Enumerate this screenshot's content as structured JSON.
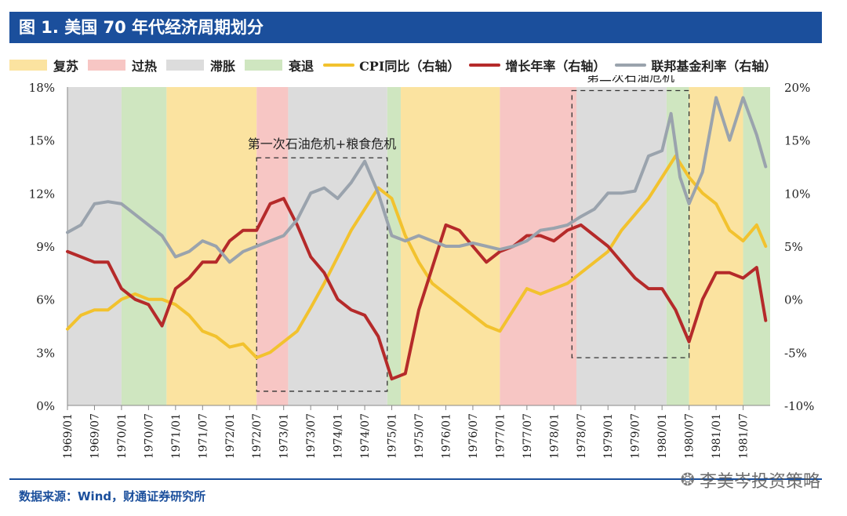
{
  "title": "图 1. 美国 70 年代经济周期划分",
  "legend": {
    "items": [
      {
        "label": "复苏",
        "kind": "box",
        "color": "#fbe3a0"
      },
      {
        "label": "过热",
        "kind": "box",
        "color": "#f7c6c4"
      },
      {
        "label": "滞胀",
        "kind": "box",
        "color": "#dcdcdc"
      },
      {
        "label": "衰退",
        "kind": "box",
        "color": "#cfe6c0"
      },
      {
        "label": "CPI同比（右轴）",
        "kind": "line",
        "color": "#f2c22e"
      },
      {
        "label": "增长年率（右轴）",
        "kind": "line",
        "color": "#b52a2a"
      },
      {
        "label": "联邦基金利率（右轴）",
        "kind": "line",
        "color": "#9aa3ad"
      }
    ]
  },
  "source": "数据来源：Wind，财通证券研究所",
  "watermark": "李美岑投资策略",
  "chart_data": {
    "type": "line",
    "x_start": "1969/01",
    "x_end": "1981/12",
    "x_ticks": [
      "1969/01",
      "1969/07",
      "1970/01",
      "1970/07",
      "1971/01",
      "1971/07",
      "1972/01",
      "1972/07",
      "1973/01",
      "1973/07",
      "1974/01",
      "1974/07",
      "1975/01",
      "1975/07",
      "1976/01",
      "1976/07",
      "1977/01",
      "1977/07",
      "1978/01",
      "1978/07",
      "1979/01",
      "1979/07",
      "1980/01",
      "1980/07",
      "1981/01",
      "1981/07"
    ],
    "left_axis": {
      "ylim": [
        0,
        18
      ],
      "ticks": [
        0,
        3,
        6,
        9,
        12,
        15,
        18
      ],
      "format": "percent"
    },
    "right_axis": {
      "ylim": [
        -10,
        20
      ],
      "ticks": [
        -10,
        -5,
        0,
        5,
        10,
        15,
        20
      ],
      "format": "percent"
    },
    "phases": [
      {
        "start": "1969/01",
        "end": "1970/01",
        "type": "滞胀",
        "color": "#dcdcdc"
      },
      {
        "start": "1970/01",
        "end": "1970/11",
        "type": "衰退",
        "color": "#cfe6c0"
      },
      {
        "start": "1970/11",
        "end": "1972/07",
        "type": "复苏",
        "color": "#fbe3a0"
      },
      {
        "start": "1972/07",
        "end": "1973/02",
        "type": "过热",
        "color": "#f7c6c4"
      },
      {
        "start": "1973/02",
        "end": "1974/12",
        "type": "滞胀",
        "color": "#dcdcdc"
      },
      {
        "start": "1974/12",
        "end": "1975/03",
        "type": "衰退",
        "color": "#cfe6c0"
      },
      {
        "start": "1975/03",
        "end": "1977/01",
        "type": "复苏",
        "color": "#fbe3a0"
      },
      {
        "start": "1977/01",
        "end": "1978/06",
        "type": "过热",
        "color": "#f7c6c4"
      },
      {
        "start": "1978/06",
        "end": "1980/02",
        "type": "滞胀",
        "color": "#dcdcdc"
      },
      {
        "start": "1980/02",
        "end": "1980/07",
        "type": "衰退",
        "color": "#cfe6c0"
      },
      {
        "start": "1980/07",
        "end": "1981/07",
        "type": "复苏",
        "color": "#fbe3a0"
      },
      {
        "start": "1981/07",
        "end": "1981/12",
        "type": "衰退",
        "color": "#cfe6c0"
      }
    ],
    "annotations": [
      {
        "label": "第一次石油危机+粮食危机",
        "start": "1972/07",
        "end": "1974/12",
        "y_top": 14,
        "y_bottom": 0.8
      },
      {
        "label": "第二次石油危机",
        "start": "1978/05",
        "end": "1980/07",
        "y_top": 17.8,
        "y_bottom": 2.7
      }
    ],
    "series": [
      {
        "name": "CPI同比（右轴）",
        "axis": "right",
        "color": "#f2c22e",
        "points": [
          [
            "1969/01",
            -2.8
          ],
          [
            "1969/04",
            -1.5
          ],
          [
            "1969/07",
            -1.0
          ],
          [
            "1969/10",
            -1.0
          ],
          [
            "1970/01",
            0
          ],
          [
            "1970/04",
            0.5
          ],
          [
            "1970/07",
            0
          ],
          [
            "1970/10",
            0
          ],
          [
            "1971/01",
            -0.5
          ],
          [
            "1971/04",
            -1.5
          ],
          [
            "1971/07",
            -3.0
          ],
          [
            "1971/10",
            -3.5
          ],
          [
            "1972/01",
            -4.5
          ],
          [
            "1972/04",
            -4.2
          ],
          [
            "1972/07",
            -5.5
          ],
          [
            "1972/10",
            -5.0
          ],
          [
            "1973/01",
            -4.0
          ],
          [
            "1973/04",
            -3.0
          ],
          [
            "1973/07",
            -0.8
          ],
          [
            "1973/10",
            1.5
          ],
          [
            "1974/01",
            4.0
          ],
          [
            "1974/04",
            6.5
          ],
          [
            "1974/07",
            8.5
          ],
          [
            "1974/10",
            10.5
          ],
          [
            "1975/01",
            9.5
          ],
          [
            "1975/04",
            6.0
          ],
          [
            "1975/07",
            3.5
          ],
          [
            "1975/10",
            1.5
          ],
          [
            "1976/01",
            0.5
          ],
          [
            "1976/04",
            -0.5
          ],
          [
            "1976/07",
            -1.5
          ],
          [
            "1976/10",
            -2.5
          ],
          [
            "1977/01",
            -3.0
          ],
          [
            "1977/04",
            -1.0
          ],
          [
            "1977/07",
            1.0
          ],
          [
            "1977/10",
            0.5
          ],
          [
            "1978/01",
            1.0
          ],
          [
            "1978/04",
            1.5
          ],
          [
            "1978/07",
            2.5
          ],
          [
            "1978/10",
            3.5
          ],
          [
            "1979/01",
            4.5
          ],
          [
            "1979/04",
            6.5
          ],
          [
            "1979/07",
            8.0
          ],
          [
            "1979/10",
            9.5
          ],
          [
            "1980/01",
            11.5
          ],
          [
            "1980/04",
            13.5
          ],
          [
            "1980/07",
            11.5
          ],
          [
            "1980/10",
            10.0
          ],
          [
            "1981/01",
            9.0
          ],
          [
            "1981/04",
            6.5
          ],
          [
            "1981/07",
            5.5
          ],
          [
            "1981/10",
            7.0
          ],
          [
            "1981/12",
            5.0
          ]
        ]
      },
      {
        "name": "增长年率（右轴）",
        "axis": "right",
        "color": "#b52a2a",
        "points": [
          [
            "1969/01",
            4.5
          ],
          [
            "1969/04",
            4.0
          ],
          [
            "1969/07",
            3.5
          ],
          [
            "1969/10",
            3.5
          ],
          [
            "1970/01",
            1.0
          ],
          [
            "1970/04",
            0
          ],
          [
            "1970/07",
            -0.5
          ],
          [
            "1970/10",
            -2.5
          ],
          [
            "1971/01",
            1.0
          ],
          [
            "1971/04",
            2.0
          ],
          [
            "1971/07",
            3.5
          ],
          [
            "1971/10",
            3.5
          ],
          [
            "1972/01",
            5.5
          ],
          [
            "1972/04",
            6.5
          ],
          [
            "1972/07",
            6.5
          ],
          [
            "1972/10",
            9.0
          ],
          [
            "1973/01",
            9.5
          ],
          [
            "1973/04",
            7.0
          ],
          [
            "1973/07",
            4.0
          ],
          [
            "1973/10",
            2.5
          ],
          [
            "1974/01",
            0
          ],
          [
            "1974/04",
            -1.0
          ],
          [
            "1974/07",
            -1.5
          ],
          [
            "1974/10",
            -3.5
          ],
          [
            "1975/01",
            -7.5
          ],
          [
            "1975/04",
            -7.0
          ],
          [
            "1975/07",
            -1.0
          ],
          [
            "1975/10",
            3.0
          ],
          [
            "1976/01",
            7.0
          ],
          [
            "1976/04",
            6.5
          ],
          [
            "1976/07",
            5.0
          ],
          [
            "1976/10",
            3.5
          ],
          [
            "1977/01",
            4.5
          ],
          [
            "1977/04",
            5.0
          ],
          [
            "1977/07",
            6.0
          ],
          [
            "1977/10",
            6.0
          ],
          [
            "1978/01",
            5.5
          ],
          [
            "1978/04",
            6.5
          ],
          [
            "1978/07",
            7.0
          ],
          [
            "1978/10",
            6.0
          ],
          [
            "1979/01",
            5.0
          ],
          [
            "1979/04",
            3.5
          ],
          [
            "1979/07",
            2.0
          ],
          [
            "1979/10",
            1.0
          ],
          [
            "1980/01",
            1.0
          ],
          [
            "1980/04",
            -1.0
          ],
          [
            "1980/07",
            -4.0
          ],
          [
            "1980/10",
            0
          ],
          [
            "1981/01",
            2.5
          ],
          [
            "1981/04",
            2.5
          ],
          [
            "1981/07",
            2.0
          ],
          [
            "1981/10",
            3.0
          ],
          [
            "1981/12",
            -2.0
          ]
        ]
      },
      {
        "name": "联邦基金利率（右轴）",
        "axis": "right",
        "color": "#9aa3ad",
        "points": [
          [
            "1969/01",
            6.3
          ],
          [
            "1969/04",
            7.0
          ],
          [
            "1969/07",
            9.0
          ],
          [
            "1969/10",
            9.2
          ],
          [
            "1970/01",
            9.0
          ],
          [
            "1970/04",
            8.0
          ],
          [
            "1970/07",
            7.0
          ],
          [
            "1970/10",
            6.0
          ],
          [
            "1971/01",
            4.0
          ],
          [
            "1971/04",
            4.5
          ],
          [
            "1971/07",
            5.5
          ],
          [
            "1971/10",
            5.0
          ],
          [
            "1972/01",
            3.5
          ],
          [
            "1972/04",
            4.5
          ],
          [
            "1972/07",
            5.0
          ],
          [
            "1972/10",
            5.5
          ],
          [
            "1973/01",
            6.0
          ],
          [
            "1973/04",
            7.5
          ],
          [
            "1973/07",
            10.0
          ],
          [
            "1973/10",
            10.5
          ],
          [
            "1974/01",
            9.5
          ],
          [
            "1974/04",
            11.0
          ],
          [
            "1974/07",
            13.0
          ],
          [
            "1974/10",
            10.0
          ],
          [
            "1975/01",
            6.0
          ],
          [
            "1975/04",
            5.5
          ],
          [
            "1975/07",
            6.0
          ],
          [
            "1975/10",
            5.5
          ],
          [
            "1976/01",
            5.0
          ],
          [
            "1976/04",
            5.0
          ],
          [
            "1976/07",
            5.3
          ],
          [
            "1976/10",
            5.0
          ],
          [
            "1977/01",
            4.7
          ],
          [
            "1977/04",
            5.0
          ],
          [
            "1977/07",
            5.5
          ],
          [
            "1977/10",
            6.5
          ],
          [
            "1978/01",
            6.7
          ],
          [
            "1978/04",
            7.0
          ],
          [
            "1978/07",
            7.8
          ],
          [
            "1978/10",
            8.5
          ],
          [
            "1979/01",
            10.0
          ],
          [
            "1979/04",
            10.0
          ],
          [
            "1979/07",
            10.2
          ],
          [
            "1979/10",
            13.5
          ],
          [
            "1980/01",
            14.0
          ],
          [
            "1980/03",
            17.5
          ],
          [
            "1980/05",
            11.5
          ],
          [
            "1980/07",
            9.0
          ],
          [
            "1980/10",
            12.0
          ],
          [
            "1981/01",
            19.0
          ],
          [
            "1981/04",
            15.0
          ],
          [
            "1981/07",
            19.0
          ],
          [
            "1981/10",
            15.5
          ],
          [
            "1981/12",
            12.5
          ]
        ]
      }
    ]
  }
}
